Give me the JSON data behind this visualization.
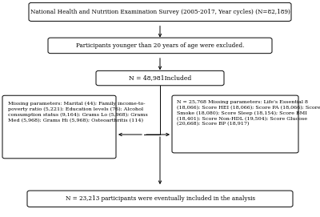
{
  "bg_color": "#ffffff",
  "box_color": "#ffffff",
  "box_edge_color": "#000000",
  "arrow_color": "#000000",
  "text_color": "#000000",
  "box1_text": "National Health and Nutrition Examination Survey (2005-2017, Year cycles) (N=82,189)",
  "box2_text": "Participants younger than 20 years of age were excluded.",
  "box3_text": "N = 48,981Included",
  "box_left_text": "Missing parameters: Marital (44); Family income-to-\npoverty ratio (5,221); Education levels (76); Alcohol\nconsumption status (9,164); Grams Lo (5,968); Grams\nMed (5,968); Grams Hi (5,968); Osteoarthritis (114)",
  "box_right_text": "N = 25,768 Missing parameters: Life's Essential 8\n(18,066); Score HEI (18,066); Score PA (18,066); Score\nSmoke (18,080); Score Sleep (18,154); Score BMI\n(18,401); Score Non-HDL (19,504); Score Glucose\n(20,668); Score BP (18,917)",
  "box4_text": "N = 23,213 participants were eventually included in the analysis",
  "font_size": 5.5,
  "font_family": "DejaVu Serif"
}
